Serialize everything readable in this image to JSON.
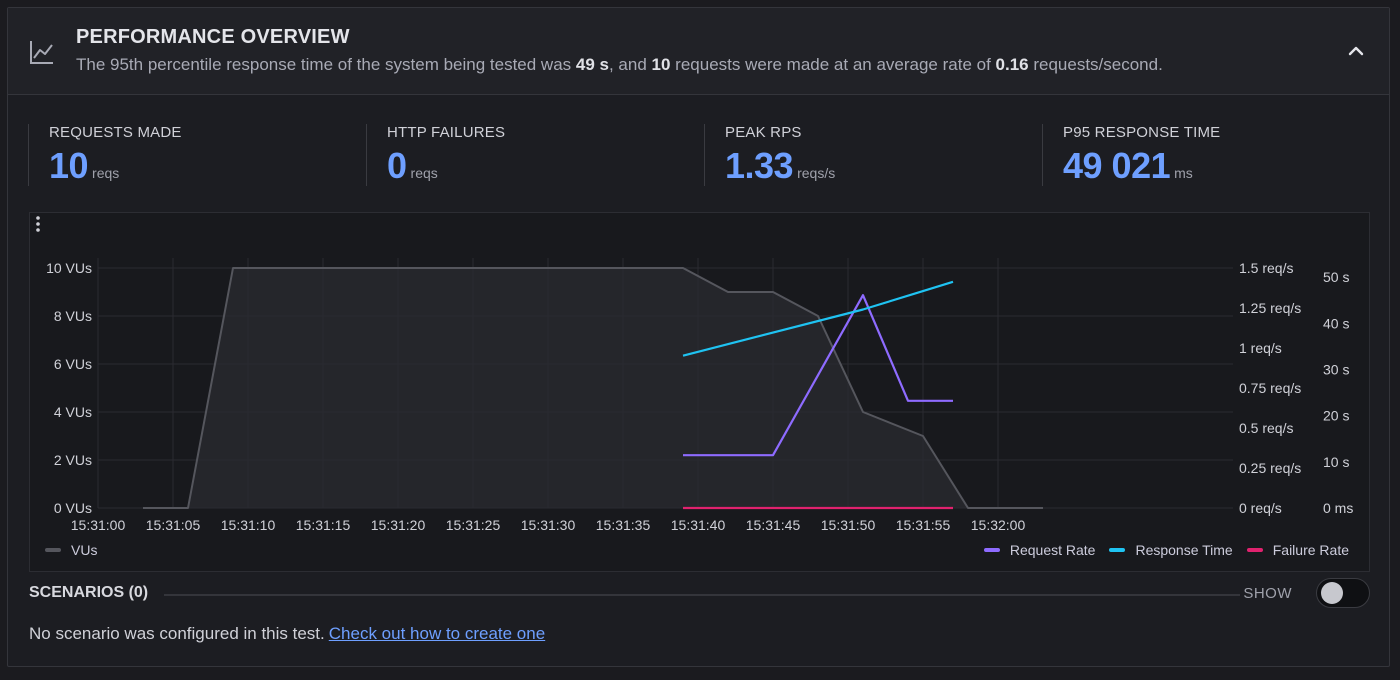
{
  "header": {
    "title": "PERFORMANCE OVERVIEW",
    "desc_parts": [
      "The 95th percentile response time of the system being tested was ",
      "49 s",
      ", and ",
      "10",
      " requests were made at an average rate of ",
      "0.16",
      " requests/second."
    ],
    "icon": "line-chart-icon",
    "collapse_icon": "chevron-up-icon"
  },
  "stats": [
    {
      "label": "REQUESTS MADE",
      "value": "10",
      "unit": "reqs"
    },
    {
      "label": "HTTP FAILURES",
      "value": "0",
      "unit": "reqs"
    },
    {
      "label": "PEAK RPS",
      "value": "1.33",
      "unit": "reqs/s"
    },
    {
      "label": "P95 RESPONSE TIME",
      "value": "49 021",
      "unit": "ms"
    }
  ],
  "chart_data": {
    "type": "line",
    "x_ticks": [
      "15:31:00",
      "15:31:05",
      "15:31:10",
      "15:31:15",
      "15:31:20",
      "15:31:25",
      "15:31:30",
      "15:31:35",
      "15:31:40",
      "15:31:45",
      "15:31:50",
      "15:31:55",
      "15:32:00"
    ],
    "x_range": [
      "15:31:00",
      "15:32:00"
    ],
    "axes": {
      "vus": {
        "ticks": [
          "0 VUs",
          "2 VUs",
          "4 VUs",
          "6 VUs",
          "8 VUs",
          "10 VUs"
        ],
        "range": [
          0,
          10
        ]
      },
      "rate": {
        "ticks": [
          "0 req/s",
          "0.25 req/s",
          "0.5 req/s",
          "0.75 req/s",
          "1 req/s",
          "1.25 req/s",
          "1.5 req/s"
        ],
        "range": [
          0,
          1.5
        ]
      },
      "time": {
        "ticks": [
          "0 ms",
          "10 s",
          "20 s",
          "30 s",
          "40 s",
          "50 s"
        ],
        "range": [
          0,
          52
        ]
      }
    },
    "series": [
      {
        "name": "VUs",
        "axis": "vus",
        "color": "#55565d",
        "points": [
          [
            "15:31:03",
            0
          ],
          [
            "15:31:06",
            0
          ],
          [
            "15:31:09",
            10
          ],
          [
            "15:31:39",
            10
          ],
          [
            "15:31:42",
            9
          ],
          [
            "15:31:45",
            9
          ],
          [
            "15:31:48",
            8
          ],
          [
            "15:31:51",
            4
          ],
          [
            "15:31:55",
            3
          ],
          [
            "15:31:58",
            0
          ],
          [
            "15:32:03",
            0
          ]
        ]
      },
      {
        "name": "Request Rate",
        "axis": "rate",
        "color": "#8e6bff",
        "points": [
          [
            "15:31:39",
            0.33
          ],
          [
            "15:31:45",
            0.33
          ],
          [
            "15:31:51",
            1.33
          ],
          [
            "15:31:54",
            0.67
          ],
          [
            "15:31:57",
            0.67
          ]
        ]
      },
      {
        "name": "Response Time",
        "axis": "time",
        "color": "#1fc3f2",
        "points": [
          [
            "15:31:39",
            33
          ],
          [
            "15:31:45",
            38
          ],
          [
            "15:31:51",
            43
          ],
          [
            "15:31:55",
            47
          ],
          [
            "15:31:57",
            49
          ]
        ]
      },
      {
        "name": "Failure Rate",
        "axis": "rate",
        "color": "#e0226e",
        "points": [
          [
            "15:31:39",
            0
          ],
          [
            "15:31:57",
            0
          ]
        ]
      }
    ],
    "grid": true,
    "legend": {
      "left": [
        "VUs"
      ],
      "right": [
        "Request Rate",
        "Response Time",
        "Failure Rate"
      ]
    }
  },
  "scenarios": {
    "title": "SCENARIOS (0)",
    "show_label": "SHOW",
    "toggle_on": false,
    "empty_text": "No scenario was configured in this test.",
    "link_text": "Check out how to create one"
  }
}
